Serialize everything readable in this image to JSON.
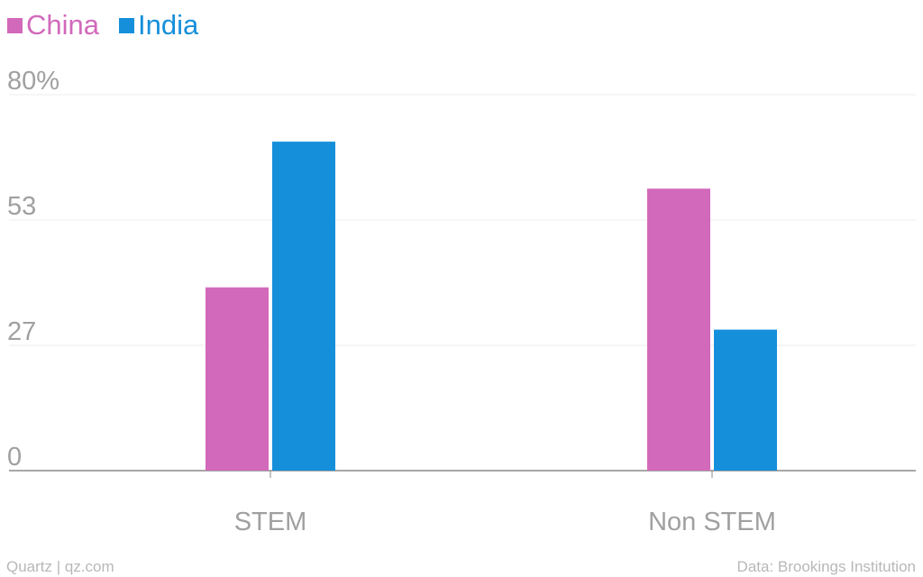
{
  "chart_data": {
    "type": "bar",
    "categories": [
      "STEM",
      "Non STEM"
    ],
    "series": [
      {
        "name": "China",
        "color": "#d269bb",
        "values": [
          39,
          60
        ]
      },
      {
        "name": "India",
        "color": "#168fdb",
        "values": [
          70,
          30
        ]
      }
    ],
    "yticks": [
      "0",
      "27",
      "53",
      "80%"
    ],
    "ytick_values": [
      0,
      26.67,
      53.33,
      80
    ],
    "ylim": [
      0,
      80
    ],
    "grid": true,
    "legend": "top-left"
  },
  "footer": {
    "source_left": "Quartz | qz.com",
    "source_right": "Data: Brookings Institution"
  }
}
